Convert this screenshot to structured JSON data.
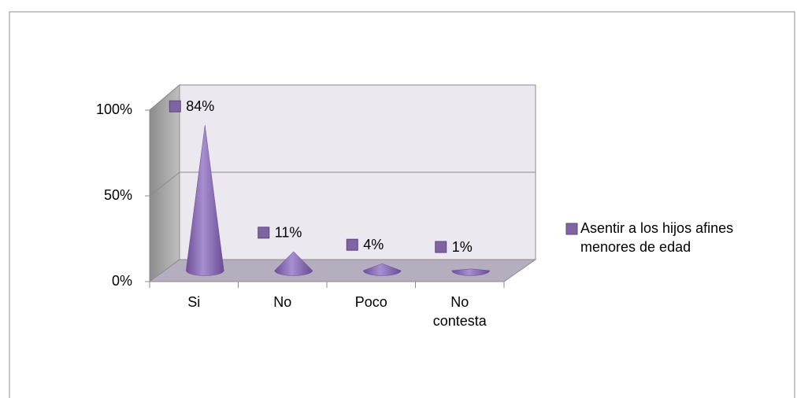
{
  "chart_data": {
    "type": "cone",
    "categories": [
      "Si",
      "No",
      "Poco",
      "No contesta"
    ],
    "series": [
      {
        "name": "Asentir a los hijos afines menores de edad",
        "color": "#8064a2",
        "values": [
          84,
          11,
          4,
          1
        ],
        "value_labels": [
          "84%",
          "11%",
          "4%",
          "1%"
        ]
      }
    ],
    "ylim": [
      0,
      100
    ],
    "yticks": [
      {
        "value": 0,
        "label": "0%"
      },
      {
        "value": 50,
        "label": "50%"
      },
      {
        "value": 100,
        "label": "100%"
      }
    ],
    "grid": true,
    "legend": "right"
  }
}
